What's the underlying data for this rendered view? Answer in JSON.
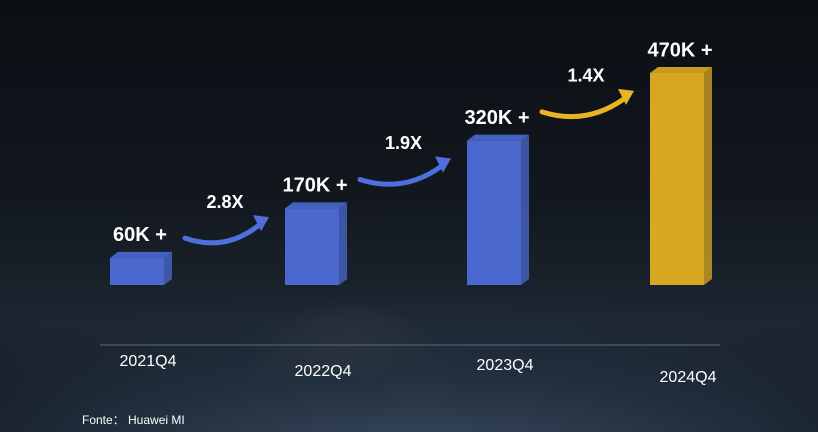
{
  "chart_data": {
    "type": "bar",
    "categories": [
      "2021Q4",
      "2022Q4",
      "2023Q4",
      "2024Q4"
    ],
    "values": [
      60,
      170,
      320,
      470
    ],
    "value_labels": [
      "60K +",
      "170K +",
      "320K +",
      "470K +"
    ],
    "colors": [
      "#4f6fdc",
      "#4f6fdc",
      "#4f6fdc",
      "#e8b422"
    ],
    "growth_labels": [
      "2.8X",
      "1.9X",
      "1.4X"
    ],
    "source": "Fonte： Huawei MI"
  }
}
